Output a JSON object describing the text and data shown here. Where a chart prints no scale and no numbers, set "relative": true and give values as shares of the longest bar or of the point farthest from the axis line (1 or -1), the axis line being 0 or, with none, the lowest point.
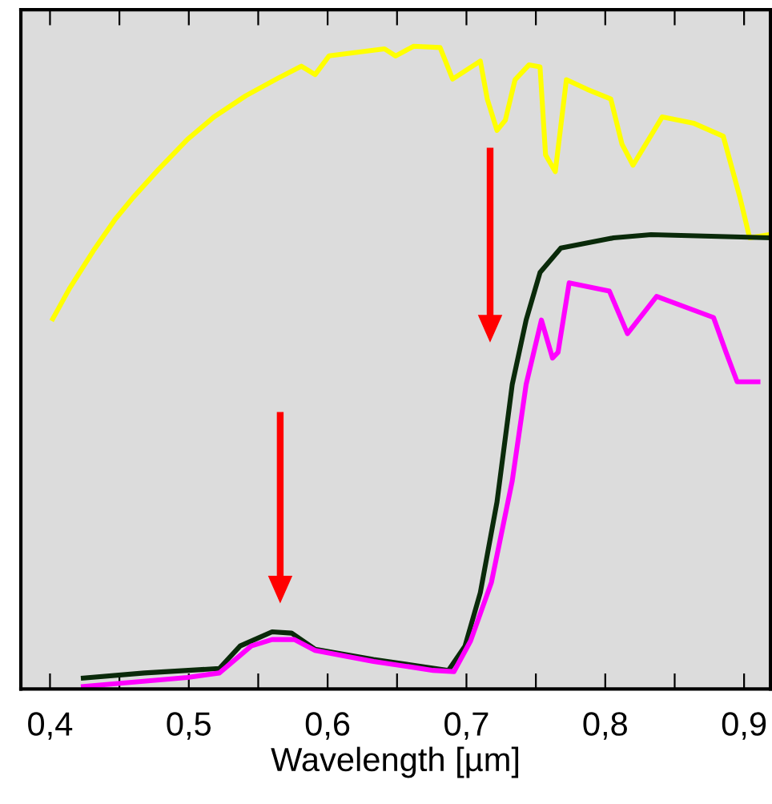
{
  "chart_data": {
    "type": "line",
    "xlabel": "Wavelength [µm]",
    "relative": true,
    "grid": false,
    "marker": "none",
    "line_style": "solid",
    "xlim": [
      0.379,
      0.919
    ],
    "xticks": [
      {
        "value": 0.4,
        "label": "0,4"
      },
      {
        "value": 0.45,
        "label": null
      },
      {
        "value": 0.5,
        "label": "0,5"
      },
      {
        "value": 0.55,
        "label": null
      },
      {
        "value": 0.6,
        "label": "0,6"
      },
      {
        "value": 0.65,
        "label": null
      },
      {
        "value": 0.7,
        "label": "0,7"
      },
      {
        "value": 0.75,
        "label": null
      },
      {
        "value": 0.8,
        "label": "0,8"
      },
      {
        "value": 0.85,
        "label": null
      },
      {
        "value": 0.9,
        "label": "0,9"
      }
    ],
    "series": [
      {
        "color": "#ffff00",
        "x": [
          0.402,
          0.414,
          0.431,
          0.447,
          0.46,
          0.478,
          0.499,
          0.518,
          0.541,
          0.564,
          0.581,
          0.591,
          0.601,
          0.626,
          0.641,
          0.649,
          0.662,
          0.681,
          0.69,
          0.71,
          0.715,
          0.722,
          0.728,
          0.735,
          0.745,
          0.753,
          0.757,
          0.764,
          0.772,
          0.787,
          0.804,
          0.812,
          0.82,
          0.841,
          0.864,
          0.885,
          0.897,
          0.904,
          0.918
        ],
        "values": [
          0.576,
          0.623,
          0.681,
          0.731,
          0.765,
          0.808,
          0.855,
          0.89,
          0.923,
          0.95,
          0.969,
          0.956,
          0.985,
          0.992,
          0.996,
          0.985,
          1,
          0.998,
          0.949,
          0.977,
          0.918,
          0.869,
          0.885,
          0.948,
          0.971,
          0.968,
          0.831,
          0.805,
          0.948,
          0.933,
          0.918,
          0.848,
          0.815,
          0.89,
          0.88,
          0.86,
          0.765,
          0.702,
          0.707
        ]
      },
      {
        "color": "#0a2a0a",
        "x": [
          0.424,
          0.468,
          0.522,
          0.537,
          0.56,
          0.574,
          0.591,
          0.633,
          0.687,
          0.699,
          0.71,
          0.722,
          0.733,
          0.743,
          0.753,
          0.768,
          0.806,
          0.833,
          0.918
        ],
        "values": [
          0.017,
          0.025,
          0.032,
          0.067,
          0.089,
          0.087,
          0.062,
          0.046,
          0.029,
          0.067,
          0.15,
          0.291,
          0.474,
          0.574,
          0.648,
          0.686,
          0.702,
          0.707,
          0.702
        ]
      },
      {
        "color": "#ff00ff",
        "x": [
          0.424,
          0.499,
          0.522,
          0.545,
          0.56,
          0.576,
          0.591,
          0.633,
          0.676,
          0.691,
          0.703,
          0.718,
          0.733,
          0.743,
          0.754,
          0.762,
          0.766,
          0.774,
          0.803,
          0.816,
          0.837,
          0.878,
          0.887,
          0.895,
          0.91
        ],
        "values": [
          0.004,
          0.018,
          0.025,
          0.067,
          0.077,
          0.077,
          0.06,
          0.043,
          0.029,
          0.027,
          0.075,
          0.166,
          0.324,
          0.474,
          0.574,
          0.515,
          0.524,
          0.632,
          0.619,
          0.553,
          0.611,
          0.578,
          0.524,
          0.478,
          0.478
        ]
      }
    ]
  }
}
